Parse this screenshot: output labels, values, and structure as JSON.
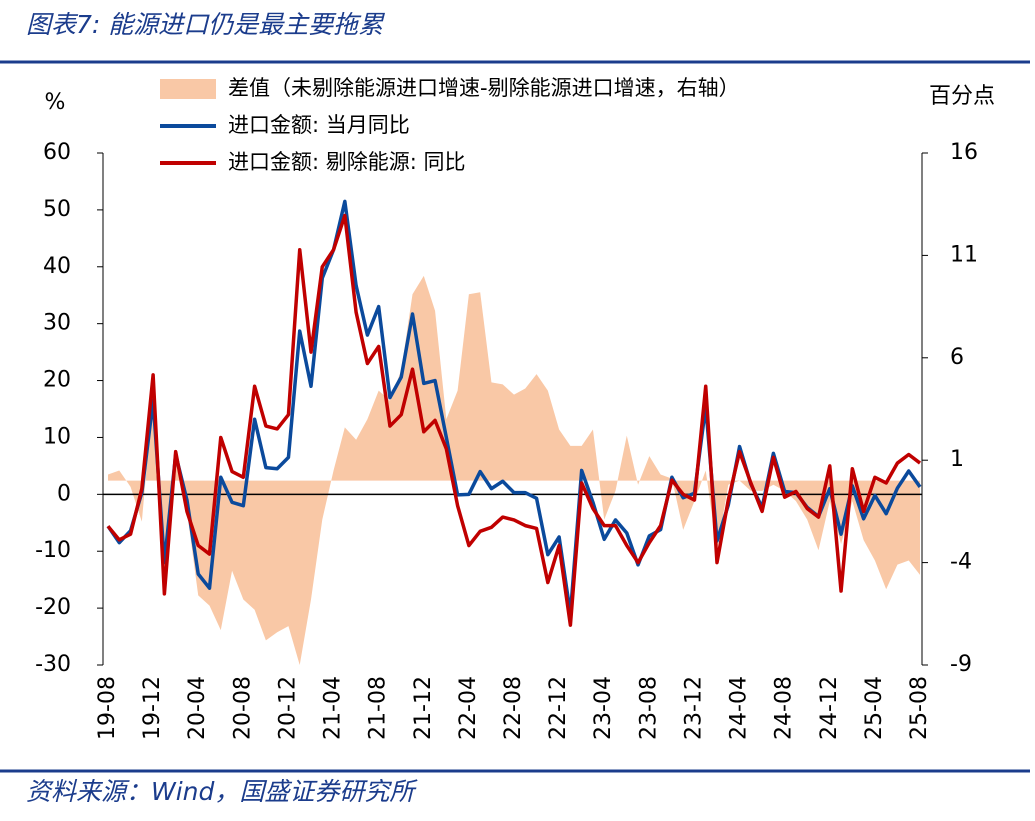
{
  "chart_data": {
    "type": "line",
    "title": "图表7:  能源进口仍是最主要拖累",
    "source": "资料来源：Wind，国盛证券研究所",
    "y_label": "%",
    "y2_label": "百分点",
    "categories": [
      "19-08",
      null,
      null,
      null,
      "19-12",
      null,
      null,
      null,
      "20-04",
      null,
      null,
      null,
      "20-08",
      null,
      null,
      null,
      "20-12",
      null,
      null,
      null,
      "21-04",
      null,
      null,
      null,
      "21-08",
      null,
      null,
      null,
      "21-12",
      null,
      null,
      null,
      "22-04",
      null,
      null,
      null,
      "22-08",
      null,
      null,
      null,
      "22-12",
      null,
      null,
      null,
      "23-04",
      null,
      null,
      null,
      "23-08",
      null,
      null,
      null,
      "23-12",
      null,
      null,
      null,
      "24-04",
      null,
      null,
      null,
      "24-08",
      null,
      null,
      null,
      "24-12",
      null,
      null,
      null,
      "25-04",
      null,
      null,
      null,
      "25-08"
    ],
    "ylim": [
      -30,
      60
    ],
    "yticks": [
      -30,
      -20,
      -10,
      0,
      10,
      20,
      30,
      40,
      50,
      60
    ],
    "y2lim": [
      -9,
      16
    ],
    "y2ticks": [
      -9,
      -4,
      1,
      6,
      11,
      16
    ],
    "series": [
      {
        "name": "差值（未剔除能源进口增速-剔除能源进口增速，右轴）",
        "type": "area",
        "axis": "y2",
        "color": "#f9c8a6",
        "values": [
          0.3,
          0.5,
          -0.3,
          -2,
          4.2,
          -4.4,
          1.2,
          -1.5,
          -5.6,
          -6.1,
          -7.3,
          -4.4,
          -5.8,
          -6.3,
          -7.8,
          -7.4,
          -7.1,
          -9,
          -5.8,
          -1.9,
          0.5,
          2.6,
          2,
          3,
          4.4,
          3.9,
          5.4,
          9.1,
          10,
          8.3,
          3,
          4.4,
          9.1,
          9.2,
          4.8,
          4.7,
          4.2,
          4.5,
          5.2,
          4.4,
          2.5,
          1.7,
          1.7,
          2.5,
          -1.9,
          -0.5,
          2.2,
          -0.2,
          1.2,
          0.3,
          0.1,
          -2.4,
          -1,
          0.5,
          -3.4,
          -0.2,
          0,
          -0.5,
          -0.5,
          -0.2,
          -0.5,
          -1,
          -1.9,
          -3.4,
          -1,
          -3.1,
          -1,
          -2.9,
          -3.9,
          -5.3,
          -4.1,
          -3.9,
          -4.6
        ]
      },
      {
        "name": "进口金额: 当月同比",
        "type": "line",
        "color": "#0b4a9c",
        "values": [
          -5.6,
          -8.5,
          -6.4,
          0.3,
          16.5,
          -12,
          7,
          -1,
          -14,
          -16.5,
          3,
          -1.4,
          -2,
          13.2,
          4.7,
          4.5,
          6.5,
          28.7,
          19,
          38,
          43,
          51.5,
          36.7,
          28,
          33,
          17,
          20.6,
          31.7,
          19.5,
          20,
          10,
          -0.1,
          0,
          4,
          1,
          2.3,
          0.3,
          0.3,
          -0.7,
          -10.6,
          -7.5,
          -21,
          4.2,
          -1.4,
          -7.9,
          -4.5,
          -6.8,
          -12.4,
          -7.3,
          -6.2,
          3,
          -0.6,
          0.2,
          15.5,
          -8.2,
          -1.9,
          8.4,
          1.8,
          -2.3,
          7.2,
          0.5,
          0.3,
          -2.3,
          -3.9,
          1,
          -7,
          1.5,
          -4.3,
          -0.2,
          -3.4,
          1.1,
          4.1,
          1.3
        ]
      },
      {
        "name": "进口金额:  剔除能源:  同比",
        "type": "line",
        "color": "#c00000",
        "values": [
          -5.6,
          -8,
          -7,
          1,
          21,
          -17.5,
          7.5,
          -3,
          -9,
          -10.5,
          10,
          4,
          3,
          19,
          12,
          11.5,
          14,
          43,
          25,
          40,
          43,
          49,
          32,
          23,
          26,
          12,
          14,
          22,
          11,
          13,
          8,
          -2,
          -9,
          -6.5,
          -5.8,
          -4,
          -4.5,
          -5.5,
          -6,
          -15.5,
          -9,
          -23,
          2,
          -2.5,
          -5.5,
          -5.5,
          -9,
          -12,
          -8.5,
          -5.5,
          2.5,
          0,
          -1,
          19,
          -12,
          -1,
          7.5,
          2,
          -3,
          6.5,
          -0.5,
          0.5,
          -2.5,
          -4,
          5,
          -17,
          4.5,
          -3,
          3,
          2,
          5.5,
          7,
          5.5
        ]
      }
    ]
  }
}
